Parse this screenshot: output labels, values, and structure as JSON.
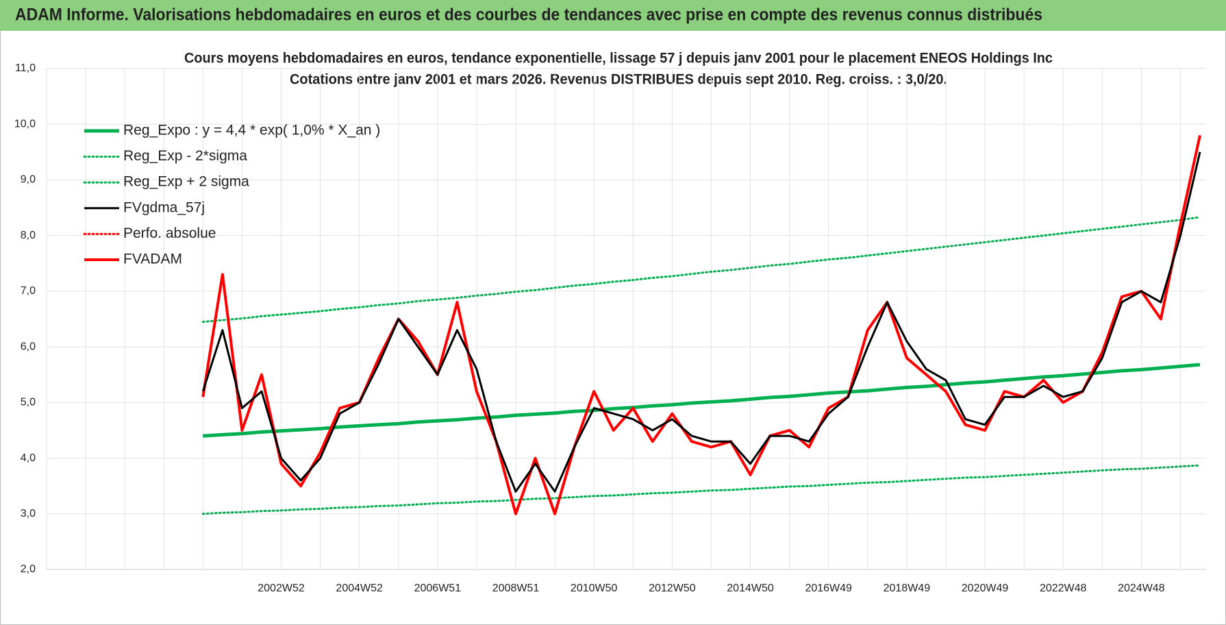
{
  "page_title": "ADAM Informe. Valorisations hebdomadaires en euros et des courbes de tendances avec prise en compte des revenus connus distribués",
  "chart_data": {
    "type": "line",
    "title": "Cours moyens hebdomadaires en euros, tendance exponentielle, lissage 57 j depuis janv 2001 pour le placement ENEOS Holdings Inc",
    "subtitle": "Cotations entre janv 2001 et mars 2026. Revenus DISTRIBUES depuis sept 2010. Reg. croiss. : 3,0/20.",
    "categories": [
      null,
      null,
      null,
      null,
      null,
      null,
      null,
      null,
      null,
      null,
      null,
      null,
      "2002W52",
      null,
      null,
      null,
      "2004W52",
      null,
      null,
      null,
      "2006W51",
      null,
      null,
      null,
      "2008W51",
      null,
      null,
      null,
      "2010W50",
      null,
      null,
      null,
      "2012W50",
      null,
      null,
      null,
      "2014W50",
      null,
      null,
      null,
      "2016W49",
      null,
      null,
      null,
      "2018W49",
      null,
      null,
      null,
      "2020W49",
      null,
      null,
      null,
      "2022W48",
      null,
      null,
      null,
      "2024W48",
      null,
      null,
      null
    ],
    "ylim": [
      2,
      11
    ],
    "yticks": [
      {
        "value": 2,
        "label": "2,0"
      },
      {
        "value": 3,
        "label": "3,0"
      },
      {
        "value": 4,
        "label": "4,0"
      },
      {
        "value": 5,
        "label": "5,0"
      },
      {
        "value": 6,
        "label": "6,0"
      },
      {
        "value": 7,
        "label": "7,0"
      },
      {
        "value": 8,
        "label": "8,0"
      },
      {
        "value": 9,
        "label": "9,0"
      },
      {
        "value": 10,
        "label": "10,0"
      },
      {
        "value": 11,
        "label": "11,0"
      }
    ],
    "grid": true,
    "legend": "upper left",
    "series": [
      {
        "name": "Reg_Expo : y = 4,4 * exp( 1,0% *  X_an )",
        "color": "#00b050",
        "style": "solid",
        "width": 5,
        "values": [
          null,
          null,
          null,
          null,
          null,
          null,
          null,
          null,
          4.4,
          4.42,
          4.44,
          4.47,
          4.49,
          4.51,
          4.53,
          4.56,
          4.58,
          4.6,
          4.62,
          4.65,
          4.67,
          4.69,
          4.72,
          4.74,
          4.77,
          4.79,
          4.81,
          4.84,
          4.86,
          4.89,
          4.91,
          4.94,
          4.96,
          4.99,
          5.01,
          5.03,
          5.06,
          5.09,
          5.11,
          5.14,
          5.17,
          5.19,
          5.21,
          5.24,
          5.27,
          5.29,
          5.32,
          5.35,
          5.37,
          5.4,
          5.43,
          5.46,
          5.48,
          5.51,
          5.54,
          5.57,
          5.59,
          5.62,
          5.65,
          5.68
        ]
      },
      {
        "name": "Reg_Exp - 2*sigma",
        "color": "#00b050",
        "style": "dotted",
        "width": 3,
        "values": [
          null,
          null,
          null,
          null,
          null,
          null,
          null,
          null,
          3.0,
          3.02,
          3.03,
          3.05,
          3.06,
          3.08,
          3.09,
          3.11,
          3.12,
          3.14,
          3.15,
          3.17,
          3.19,
          3.2,
          3.22,
          3.23,
          3.25,
          3.27,
          3.28,
          3.3,
          3.32,
          3.33,
          3.35,
          3.37,
          3.38,
          3.4,
          3.42,
          3.43,
          3.45,
          3.47,
          3.49,
          3.5,
          3.52,
          3.54,
          3.56,
          3.57,
          3.59,
          3.61,
          3.63,
          3.65,
          3.66,
          3.68,
          3.7,
          3.72,
          3.74,
          3.76,
          3.78,
          3.8,
          3.81,
          3.83,
          3.85,
          3.87
        ]
      },
      {
        "name": "Reg_Exp + 2 sigma",
        "color": "#00b050",
        "style": "dotted",
        "width": 3,
        "values": [
          null,
          null,
          null,
          null,
          null,
          null,
          null,
          null,
          6.45,
          6.48,
          6.51,
          6.55,
          6.58,
          6.61,
          6.64,
          6.68,
          6.71,
          6.75,
          6.78,
          6.82,
          6.85,
          6.88,
          6.92,
          6.95,
          6.99,
          7.02,
          7.06,
          7.1,
          7.13,
          7.17,
          7.2,
          7.24,
          7.27,
          7.31,
          7.35,
          7.38,
          7.42,
          7.46,
          7.49,
          7.53,
          7.57,
          7.6,
          7.64,
          7.68,
          7.72,
          7.76,
          7.8,
          7.84,
          7.88,
          7.92,
          7.96,
          8.0,
          8.04,
          8.08,
          8.12,
          8.16,
          8.2,
          8.24,
          8.28,
          8.33
        ]
      },
      {
        "name": "FVgdma_57j",
        "color": "#000000",
        "style": "solid",
        "width": 3,
        "values": [
          null,
          null,
          null,
          null,
          null,
          null,
          null,
          null,
          5.2,
          6.3,
          4.9,
          5.2,
          4.0,
          3.6,
          4.0,
          4.8,
          5.0,
          5.7,
          6.5,
          6.0,
          5.5,
          6.3,
          5.6,
          4.3,
          3.4,
          3.9,
          3.4,
          4.2,
          4.9,
          4.8,
          4.7,
          4.5,
          4.7,
          4.4,
          4.3,
          4.3,
          3.9,
          4.4,
          4.4,
          4.3,
          4.8,
          5.1,
          6.0,
          6.8,
          6.1,
          5.6,
          5.4,
          4.7,
          4.6,
          5.1,
          5.1,
          5.3,
          5.1,
          5.2,
          5.8,
          6.8,
          7.0,
          6.8,
          8.0,
          9.5
        ]
      },
      {
        "name": "Perfo. absolue",
        "color": "#ff0000",
        "style": "dotted",
        "width": 3,
        "values": [
          null,
          null,
          null,
          null,
          null,
          null,
          null,
          null,
          null,
          null,
          null,
          null,
          null,
          null,
          null,
          null,
          null,
          null,
          null,
          null,
          null,
          null,
          null,
          null,
          null,
          null,
          null,
          null,
          null,
          null,
          null,
          null,
          null,
          null,
          null,
          null,
          null,
          null,
          null,
          null,
          null,
          null,
          null,
          null,
          null,
          null,
          null,
          null,
          null,
          null,
          null,
          null,
          null,
          null,
          null,
          null,
          null,
          null,
          null,
          null
        ]
      },
      {
        "name": "FVADAM",
        "color": "#ff0000",
        "style": "solid",
        "width": 4,
        "values": [
          null,
          null,
          null,
          null,
          null,
          null,
          null,
          null,
          5.1,
          7.3,
          4.5,
          5.5,
          3.9,
          3.5,
          4.1,
          4.9,
          5.0,
          5.8,
          6.5,
          6.1,
          5.5,
          6.8,
          5.2,
          4.3,
          3.0,
          4.0,
          3.0,
          4.2,
          5.2,
          4.5,
          4.9,
          4.3,
          4.8,
          4.3,
          4.2,
          4.3,
          3.7,
          4.4,
          4.5,
          4.2,
          4.9,
          5.1,
          6.3,
          6.8,
          5.8,
          5.5,
          5.2,
          4.6,
          4.5,
          5.2,
          5.1,
          5.4,
          5.0,
          5.2,
          5.9,
          6.9,
          7.0,
          6.5,
          8.2,
          9.8
        ]
      }
    ]
  }
}
